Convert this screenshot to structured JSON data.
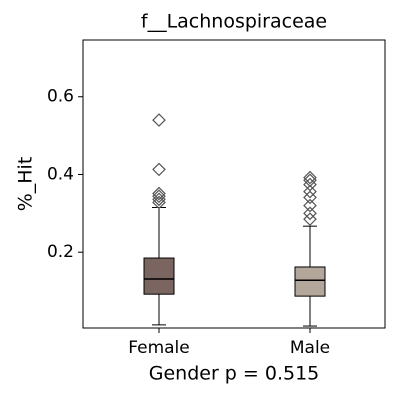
{
  "chart_data": {
    "type": "box",
    "title": "f__Lachnospiraceae",
    "x_label": "Gender p = 0.515",
    "y_label": "%_Hit",
    "categories": [
      "Female",
      "Male"
    ],
    "colors": [
      "#7a6560",
      "#b3a69a"
    ],
    "whisker_low": [
      0.013,
      0.01
    ],
    "q1": [
      0.092,
      0.087
    ],
    "median": [
      0.131,
      0.128
    ],
    "q3": [
      0.185,
      0.162
    ],
    "whisker_high": [
      0.315,
      0.267
    ],
    "outliers": [
      [
        0.54,
        0.413,
        0.351,
        0.344,
        0.336,
        0.328
      ],
      [
        0.392,
        0.385,
        0.374,
        0.356,
        0.341,
        0.32,
        0.3,
        0.285
      ]
    ],
    "ylim": [
      0.005,
      0.746
    ],
    "yticks": [
      0.2,
      0.4,
      0.6
    ]
  }
}
